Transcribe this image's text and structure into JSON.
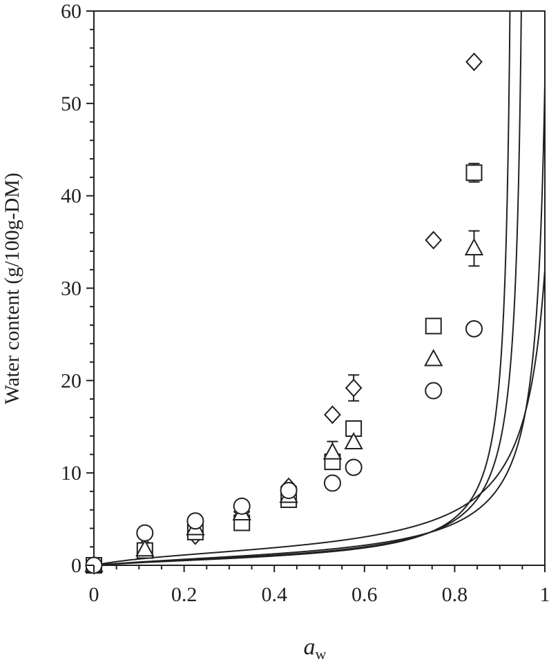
{
  "chart_data": {
    "type": "scatter",
    "xlabel_main": "a",
    "xlabel_sub": "w",
    "ylabel": "Water content (g/100g-DM)",
    "xlim": [
      0,
      1
    ],
    "ylim": [
      0,
      60
    ],
    "x_ticks": [
      0,
      0.2,
      0.4,
      0.6,
      0.8,
      1
    ],
    "x_tick_labels": [
      "0",
      "0.2",
      "0.4",
      "0.6",
      "0.8",
      "1"
    ],
    "y_ticks": [
      0,
      10,
      20,
      30,
      40,
      50,
      60
    ],
    "y_tick_labels": [
      "0",
      "10",
      "20",
      "30",
      "40",
      "50",
      "60"
    ],
    "grid": false,
    "legend": "none",
    "series": [
      {
        "marker": "diamond",
        "points": [
          {
            "x": 0.0,
            "y": 0.0
          },
          {
            "x": 0.113,
            "y": 2.0
          },
          {
            "x": 0.225,
            "y": 3.2
          },
          {
            "x": 0.328,
            "y": 5.8
          },
          {
            "x": 0.432,
            "y": 8.5
          },
          {
            "x": 0.529,
            "y": 16.3
          },
          {
            "x": 0.576,
            "y": 19.2,
            "err": 1.4
          },
          {
            "x": 0.753,
            "y": 35.2
          },
          {
            "x": 0.843,
            "y": 54.5
          }
        ],
        "curve": {
          "W": 0.77,
          "C": 4,
          "K": 1.07
        }
      },
      {
        "marker": "square",
        "points": [
          {
            "x": 0.0,
            "y": 0.0
          },
          {
            "x": 0.113,
            "y": 1.6
          },
          {
            "x": 0.225,
            "y": 3.6
          },
          {
            "x": 0.328,
            "y": 4.6
          },
          {
            "x": 0.432,
            "y": 7.1
          },
          {
            "x": 0.529,
            "y": 11.2
          },
          {
            "x": 0.576,
            "y": 14.8
          },
          {
            "x": 0.753,
            "y": 25.9
          },
          {
            "x": 0.843,
            "y": 42.5,
            "err": 1.0
          }
        ],
        "curve": {
          "W": 0.86,
          "C": 4,
          "K": 1.04
        }
      },
      {
        "marker": "triangle",
        "points": [
          {
            "x": 0.0,
            "y": 0.0
          },
          {
            "x": 0.113,
            "y": 1.7
          },
          {
            "x": 0.225,
            "y": 4.0
          },
          {
            "x": 0.328,
            "y": 5.6
          },
          {
            "x": 0.432,
            "y": 7.5
          },
          {
            "x": 0.529,
            "y": 12.2,
            "err": 1.2
          },
          {
            "x": 0.576,
            "y": 13.3
          },
          {
            "x": 0.753,
            "y": 22.3
          },
          {
            "x": 0.843,
            "y": 34.3,
            "err": 1.9
          }
        ],
        "curve": {
          "W": 1.05,
          "C": 4,
          "K": 0.98
        }
      },
      {
        "marker": "circle",
        "points": [
          {
            "x": 0.0,
            "y": 0.0
          },
          {
            "x": 0.113,
            "y": 3.5
          },
          {
            "x": 0.225,
            "y": 4.8
          },
          {
            "x": 0.328,
            "y": 6.4
          },
          {
            "x": 0.432,
            "y": 8.1
          },
          {
            "x": 0.529,
            "y": 8.9
          },
          {
            "x": 0.576,
            "y": 10.6
          },
          {
            "x": 0.753,
            "y": 18.9
          },
          {
            "x": 0.843,
            "y": 25.6
          }
        ],
        "curve": {
          "W": 1.45,
          "C": 7,
          "K": 0.955
        }
      }
    ]
  }
}
